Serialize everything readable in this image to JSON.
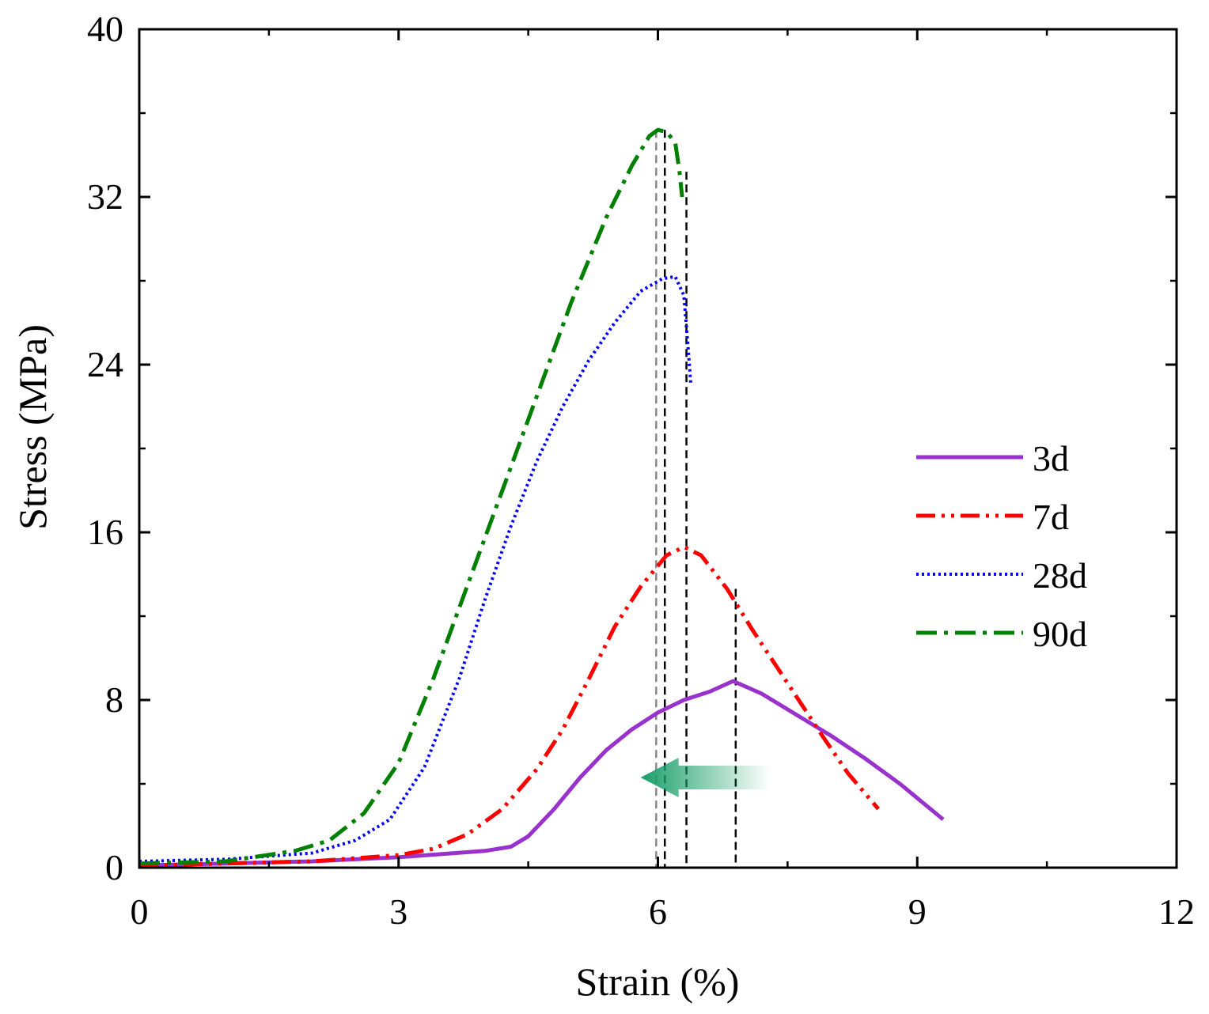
{
  "chart_data": {
    "type": "line",
    "title": "",
    "xlabel": "Strain (%)",
    "ylabel": "Stress (MPa)",
    "xlim": [
      0,
      12
    ],
    "ylim": [
      0,
      40
    ],
    "xticks": [
      "0",
      "3",
      "6",
      "9",
      "12"
    ],
    "yticks": [
      "0",
      "8",
      "16",
      "24",
      "32",
      "40"
    ],
    "legend_position": "right",
    "series": [
      {
        "name": "3d",
        "color": "#9932cc",
        "style": "solid",
        "points": [
          [
            0,
            0.1
          ],
          [
            1,
            0.2
          ],
          [
            2,
            0.3
          ],
          [
            3,
            0.5
          ],
          [
            4,
            0.8
          ],
          [
            4.3,
            1.0
          ],
          [
            4.5,
            1.5
          ],
          [
            4.8,
            2.8
          ],
          [
            5.1,
            4.3
          ],
          [
            5.4,
            5.6
          ],
          [
            5.7,
            6.6
          ],
          [
            6.0,
            7.4
          ],
          [
            6.3,
            8.0
          ],
          [
            6.6,
            8.4
          ],
          [
            6.87,
            8.9
          ],
          [
            7.2,
            8.3
          ],
          [
            7.6,
            7.3
          ],
          [
            8.0,
            6.3
          ],
          [
            8.4,
            5.2
          ],
          [
            8.8,
            4.0
          ],
          [
            9.3,
            2.3
          ]
        ]
      },
      {
        "name": "7d",
        "color": "#ff0000",
        "style": "dashdotdot",
        "points": [
          [
            0,
            0.1
          ],
          [
            1,
            0.2
          ],
          [
            2,
            0.3
          ],
          [
            3,
            0.6
          ],
          [
            3.4,
            0.9
          ],
          [
            3.8,
            1.6
          ],
          [
            4.2,
            2.8
          ],
          [
            4.6,
            4.7
          ],
          [
            4.9,
            6.6
          ],
          [
            5.2,
            9.0
          ],
          [
            5.5,
            11.5
          ],
          [
            5.8,
            13.4
          ],
          [
            6.1,
            14.9
          ],
          [
            6.3,
            15.3
          ],
          [
            6.5,
            14.9
          ],
          [
            6.8,
            13.3
          ],
          [
            7.1,
            11.3
          ],
          [
            7.5,
            8.8
          ],
          [
            7.9,
            6.3
          ],
          [
            8.2,
            4.5
          ],
          [
            8.55,
            2.8
          ]
        ]
      },
      {
        "name": "28d",
        "color": "#0000ff",
        "style": "dotted",
        "points": [
          [
            0,
            0.3
          ],
          [
            1,
            0.4
          ],
          [
            2,
            0.7
          ],
          [
            2.5,
            1.3
          ],
          [
            2.9,
            2.3
          ],
          [
            3.3,
            4.8
          ],
          [
            3.7,
            9.0
          ],
          [
            4.0,
            12.8
          ],
          [
            4.3,
            16.3
          ],
          [
            4.6,
            19.4
          ],
          [
            4.9,
            22.0
          ],
          [
            5.2,
            24.2
          ],
          [
            5.5,
            26.0
          ],
          [
            5.8,
            27.5
          ],
          [
            6.05,
            28.1
          ],
          [
            6.2,
            28.2
          ],
          [
            6.3,
            27.3
          ],
          [
            6.35,
            24.8
          ],
          [
            6.38,
            23.1
          ]
        ]
      },
      {
        "name": "90d",
        "color": "#008000",
        "style": "dashdot",
        "points": [
          [
            0,
            0.2
          ],
          [
            1,
            0.3
          ],
          [
            1.8,
            0.8
          ],
          [
            2.2,
            1.3
          ],
          [
            2.6,
            2.6
          ],
          [
            3.0,
            5.0
          ],
          [
            3.4,
            9.0
          ],
          [
            3.8,
            13.5
          ],
          [
            4.2,
            18.0
          ],
          [
            4.6,
            22.5
          ],
          [
            5.0,
            27.0
          ],
          [
            5.4,
            31.0
          ],
          [
            5.7,
            33.5
          ],
          [
            5.9,
            34.9
          ],
          [
            6.0,
            35.2
          ],
          [
            6.1,
            35.1
          ],
          [
            6.2,
            34.6
          ],
          [
            6.25,
            33.2
          ],
          [
            6.28,
            32.0
          ]
        ]
      }
    ],
    "reference_lines": [
      {
        "x": 5.98,
        "color": "#888888"
      },
      {
        "x": 6.08,
        "color": "#000000"
      },
      {
        "x": 6.33,
        "color": "#000000"
      },
      {
        "x": 6.9,
        "color": "#000000"
      }
    ],
    "arrow": {
      "from_x": 7.3,
      "to_x": 5.8,
      "y": 4.3,
      "color": "#1a9e6a",
      "direction": "left"
    }
  }
}
